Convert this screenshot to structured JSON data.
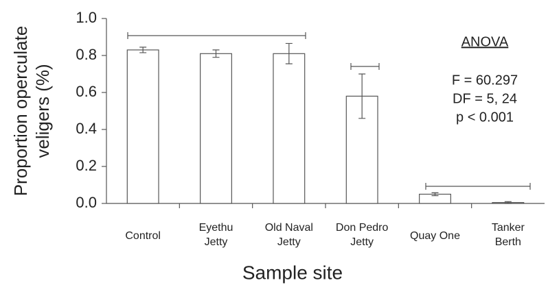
{
  "chart_data": {
    "type": "bar",
    "xlabel": "Sample site",
    "ylabel": [
      "Proportion operculate",
      "veligers (%)"
    ],
    "categories": [
      [
        "Control"
      ],
      [
        "Eyethu",
        "Jetty"
      ],
      [
        "Old Naval",
        "Jetty"
      ],
      [
        "Don Pedro",
        "Jetty"
      ],
      [
        "Quay One"
      ],
      [
        "Tanker",
        "Berth"
      ]
    ],
    "values": [
      0.83,
      0.81,
      0.81,
      0.58,
      0.05,
      0.005
    ],
    "errors": [
      0.015,
      0.02,
      0.055,
      0.12,
      0.008,
      0.005
    ],
    "color": "#ffffff",
    "ylim": [
      0,
      1
    ],
    "yticks": [
      {
        "value": 0,
        "label": "0.0"
      },
      0.2,
      0.4,
      0.6,
      0.8,
      {
        "value": 1,
        "label": "1.0"
      }
    ],
    "annotations": {
      "heading": "ANOVA",
      "lines": [
        "F = 60.297",
        "DF = 5, 24",
        "p < 0.001"
      ]
    }
  }
}
